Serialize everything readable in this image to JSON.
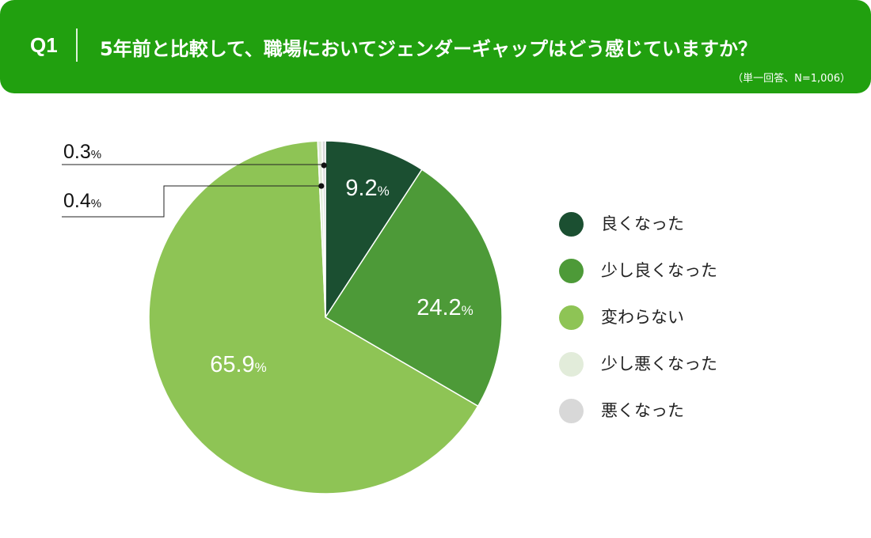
{
  "header": {
    "q_number": "Q1",
    "question": "5年前と比較して、職場においてジェンダーギャップはどう感じていますか？",
    "note": "（単一回答、N=1,006）"
  },
  "colors": {
    "header_bg": "#21a00f"
  },
  "chart_data": {
    "type": "pie",
    "unit": "%",
    "slices": [
      {
        "label": "良くなった",
        "value": 9.2,
        "display": "9.2",
        "color": "#1b4f31"
      },
      {
        "label": "少し良くなった",
        "value": 24.2,
        "display": "24.2",
        "color": "#4d9a38"
      },
      {
        "label": "変わらない",
        "value": 65.9,
        "display": "65.9",
        "color": "#8ec455"
      },
      {
        "label": "少し悪くなった",
        "value": 0.4,
        "display": "0.4",
        "color": "#e2ecda"
      },
      {
        "label": "悪くなった",
        "value": 0.3,
        "display": "0.3",
        "color": "#d8d8d8"
      }
    ],
    "legend_position": "right"
  }
}
